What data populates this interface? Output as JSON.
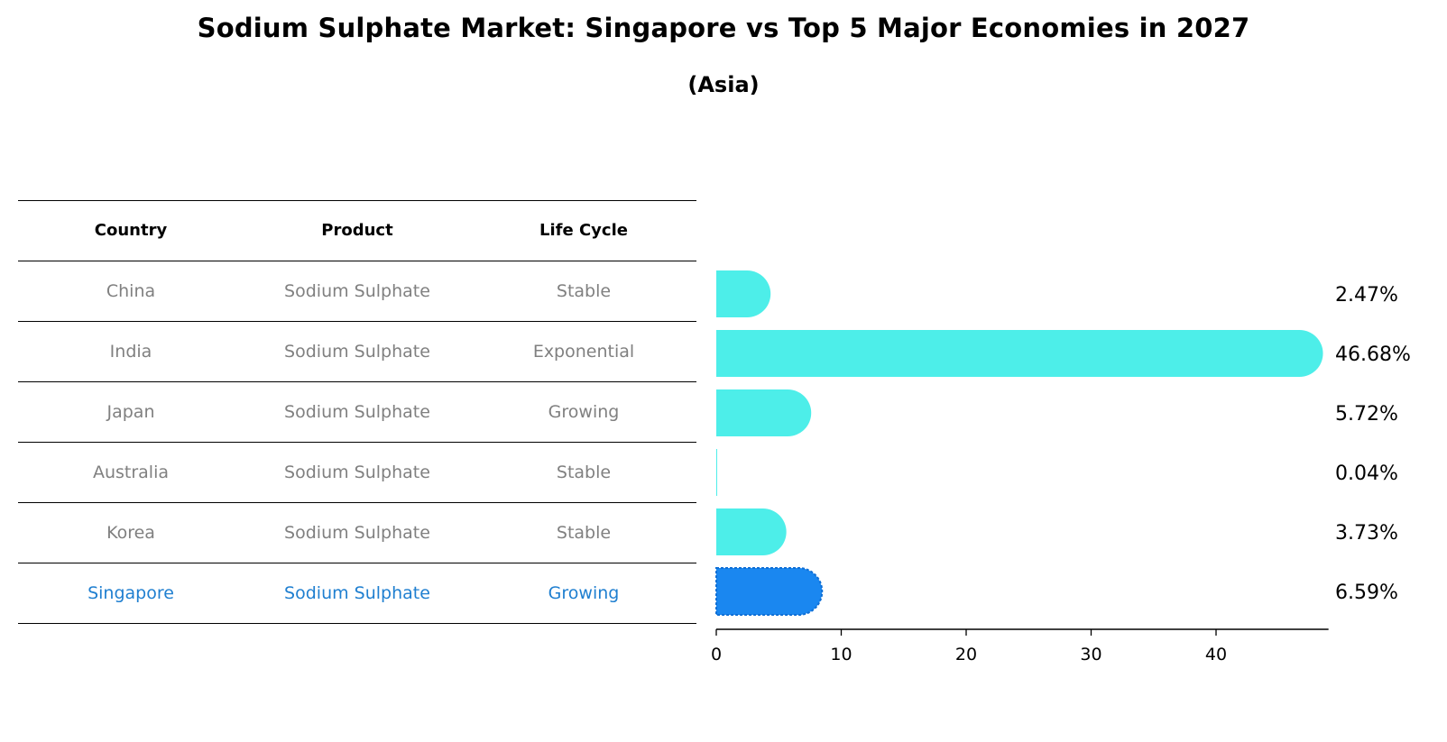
{
  "title": "Sodium Sulphate Market: Singapore vs Top 5 Major Economies in 2027",
  "subtitle": "(Asia)",
  "table": {
    "headers": [
      "Country",
      "Product",
      "Life Cycle"
    ],
    "rows": [
      {
        "country": "China",
        "product": "Sodium Sulphate",
        "life_cycle": "Stable",
        "highlight": false
      },
      {
        "country": "India",
        "product": "Sodium Sulphate",
        "life_cycle": "Exponential",
        "highlight": false
      },
      {
        "country": "Japan",
        "product": "Sodium Sulphate",
        "life_cycle": "Growing",
        "highlight": false
      },
      {
        "country": "Australia",
        "product": "Sodium Sulphate",
        "life_cycle": "Stable",
        "highlight": false
      },
      {
        "country": "Korea",
        "product": "Sodium Sulphate",
        "life_cycle": "Stable",
        "highlight": false
      },
      {
        "country": "Singapore",
        "product": "Sodium Sulphate",
        "life_cycle": "Growing",
        "highlight": true
      }
    ]
  },
  "colors": {
    "bar": "#4deee9",
    "highlight_bar": "#1a87f0",
    "muted_text": "#808080",
    "highlight_text": "#1f7fd0"
  },
  "chart_data": {
    "type": "bar",
    "orientation": "horizontal",
    "categories": [
      "China",
      "India",
      "Japan",
      "Australia",
      "Korea",
      "Singapore"
    ],
    "values": [
      2.47,
      46.68,
      5.72,
      0.04,
      3.73,
      6.59
    ],
    "value_labels": [
      "2.47%",
      "46.68%",
      "5.72%",
      "0.04%",
      "3.73%",
      "6.59%"
    ],
    "highlight_index": 5,
    "xlim": [
      0,
      49
    ],
    "xticks": [
      0,
      10,
      20,
      30,
      40
    ],
    "xtick_labels": [
      "0",
      "10",
      "20",
      "30",
      "40"
    ],
    "grid": false,
    "legend": false
  }
}
